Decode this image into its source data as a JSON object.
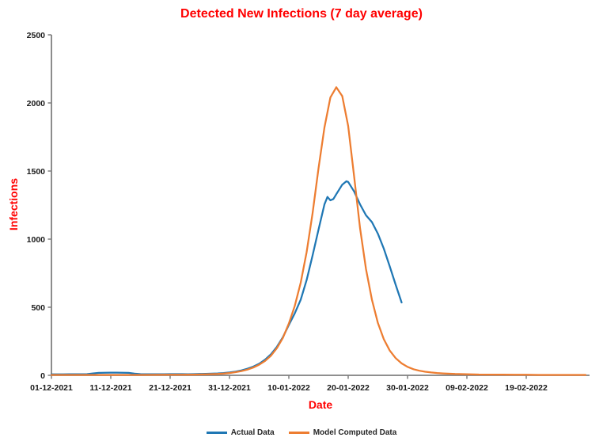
{
  "title": "Detected New Infections (7 day average)",
  "colors": {
    "title": "#FF0000",
    "axis_title": "#FF0000",
    "actual": "#1F77B4",
    "model": "#ED7D31",
    "axis_line": "#7F7F7F",
    "tick_text": "#1A1A1A"
  },
  "chart_data": {
    "type": "line",
    "title": "Detected New Infections (7 day average)",
    "xlabel": "Date",
    "ylabel": "Infections",
    "ylim": [
      0,
      2500
    ],
    "grid": false,
    "legend_position": "bottom-center",
    "y_ticks": [
      0,
      500,
      1000,
      1500,
      2000,
      2500
    ],
    "x_ticks": [
      {
        "day": 0,
        "label": "01-12-2021"
      },
      {
        "day": 10,
        "label": "11-12-2021"
      },
      {
        "day": 20,
        "label": "21-12-2021"
      },
      {
        "day": 30,
        "label": "31-12-2021"
      },
      {
        "day": 40,
        "label": "10-01-2022"
      },
      {
        "day": 50,
        "label": "20-01-2022"
      },
      {
        "day": 60,
        "label": "30-01-2022"
      },
      {
        "day": 70,
        "label": "09-02-2022"
      },
      {
        "day": 80,
        "label": "19-02-2022"
      }
    ],
    "x_unit": "days since 01-12-2021",
    "series": [
      {
        "name": "Actual Data",
        "color": "#1F77B4",
        "points": [
          [
            0,
            7
          ],
          [
            1,
            7
          ],
          [
            2,
            7
          ],
          [
            3,
            8
          ],
          [
            4,
            8
          ],
          [
            5,
            8
          ],
          [
            6,
            9
          ],
          [
            7,
            14
          ],
          [
            8,
            18
          ],
          [
            9,
            19
          ],
          [
            10,
            20
          ],
          [
            11,
            20
          ],
          [
            12,
            19
          ],
          [
            13,
            18
          ],
          [
            14,
            12
          ],
          [
            15,
            9
          ],
          [
            16,
            8
          ],
          [
            17,
            8
          ],
          [
            18,
            8
          ],
          [
            19,
            8
          ],
          [
            20,
            9
          ],
          [
            21,
            9
          ],
          [
            22,
            9
          ],
          [
            23,
            8
          ],
          [
            24,
            9
          ],
          [
            25,
            10
          ],
          [
            26,
            11
          ],
          [
            27,
            12
          ],
          [
            28,
            14
          ],
          [
            29,
            17
          ],
          [
            30,
            21
          ],
          [
            31,
            27
          ],
          [
            32,
            36
          ],
          [
            33,
            48
          ],
          [
            34,
            64
          ],
          [
            35,
            85
          ],
          [
            36,
            115
          ],
          [
            37,
            155
          ],
          [
            38,
            210
          ],
          [
            39,
            280
          ],
          [
            40,
            370
          ],
          [
            41,
            455
          ],
          [
            42,
            555
          ],
          [
            43,
            700
          ],
          [
            44,
            880
          ],
          [
            45,
            1070
          ],
          [
            46,
            1255
          ],
          [
            46.5,
            1310
          ],
          [
            47,
            1285
          ],
          [
            47.5,
            1295
          ],
          [
            48,
            1330
          ],
          [
            49,
            1400
          ],
          [
            49.7,
            1425
          ],
          [
            50,
            1420
          ],
          [
            51,
            1350
          ],
          [
            52,
            1255
          ],
          [
            53,
            1175
          ],
          [
            54,
            1125
          ],
          [
            55,
            1040
          ],
          [
            56,
            930
          ],
          [
            57,
            800
          ],
          [
            58,
            665
          ],
          [
            59,
            535
          ]
        ]
      },
      {
        "name": "Model Computed Data",
        "color": "#ED7D31",
        "points": [
          [
            0,
            3
          ],
          [
            5,
            3
          ],
          [
            10,
            3
          ],
          [
            15,
            3
          ],
          [
            20,
            4
          ],
          [
            22,
            4
          ],
          [
            24,
            5
          ],
          [
            26,
            7
          ],
          [
            28,
            10
          ],
          [
            29,
            13
          ],
          [
            30,
            17
          ],
          [
            31,
            23
          ],
          [
            32,
            31
          ],
          [
            33,
            42
          ],
          [
            34,
            57
          ],
          [
            35,
            78
          ],
          [
            36,
            106
          ],
          [
            37,
            145
          ],
          [
            38,
            200
          ],
          [
            39,
            275
          ],
          [
            40,
            380
          ],
          [
            41,
            510
          ],
          [
            42,
            680
          ],
          [
            43,
            905
          ],
          [
            44,
            1190
          ],
          [
            45,
            1520
          ],
          [
            46,
            1820
          ],
          [
            47,
            2040
          ],
          [
            48,
            2115
          ],
          [
            49,
            2050
          ],
          [
            50,
            1830
          ],
          [
            51,
            1460
          ],
          [
            52,
            1080
          ],
          [
            53,
            780
          ],
          [
            54,
            555
          ],
          [
            55,
            385
          ],
          [
            56,
            265
          ],
          [
            57,
            182
          ],
          [
            58,
            126
          ],
          [
            59,
            88
          ],
          [
            60,
            62
          ],
          [
            61,
            45
          ],
          [
            62,
            34
          ],
          [
            63,
            26
          ],
          [
            64,
            21
          ],
          [
            65,
            17
          ],
          [
            66,
            14
          ],
          [
            68,
            10
          ],
          [
            70,
            8
          ],
          [
            72,
            6
          ],
          [
            75,
            5
          ],
          [
            78,
            4
          ],
          [
            80,
            4
          ],
          [
            82,
            3
          ],
          [
            85,
            3
          ],
          [
            88,
            3
          ],
          [
            90,
            3
          ]
        ]
      }
    ]
  },
  "legend": {
    "items": [
      {
        "label": "Actual Data",
        "color": "#1F77B4"
      },
      {
        "label": "Model Computed Data",
        "color": "#ED7D31"
      }
    ]
  }
}
